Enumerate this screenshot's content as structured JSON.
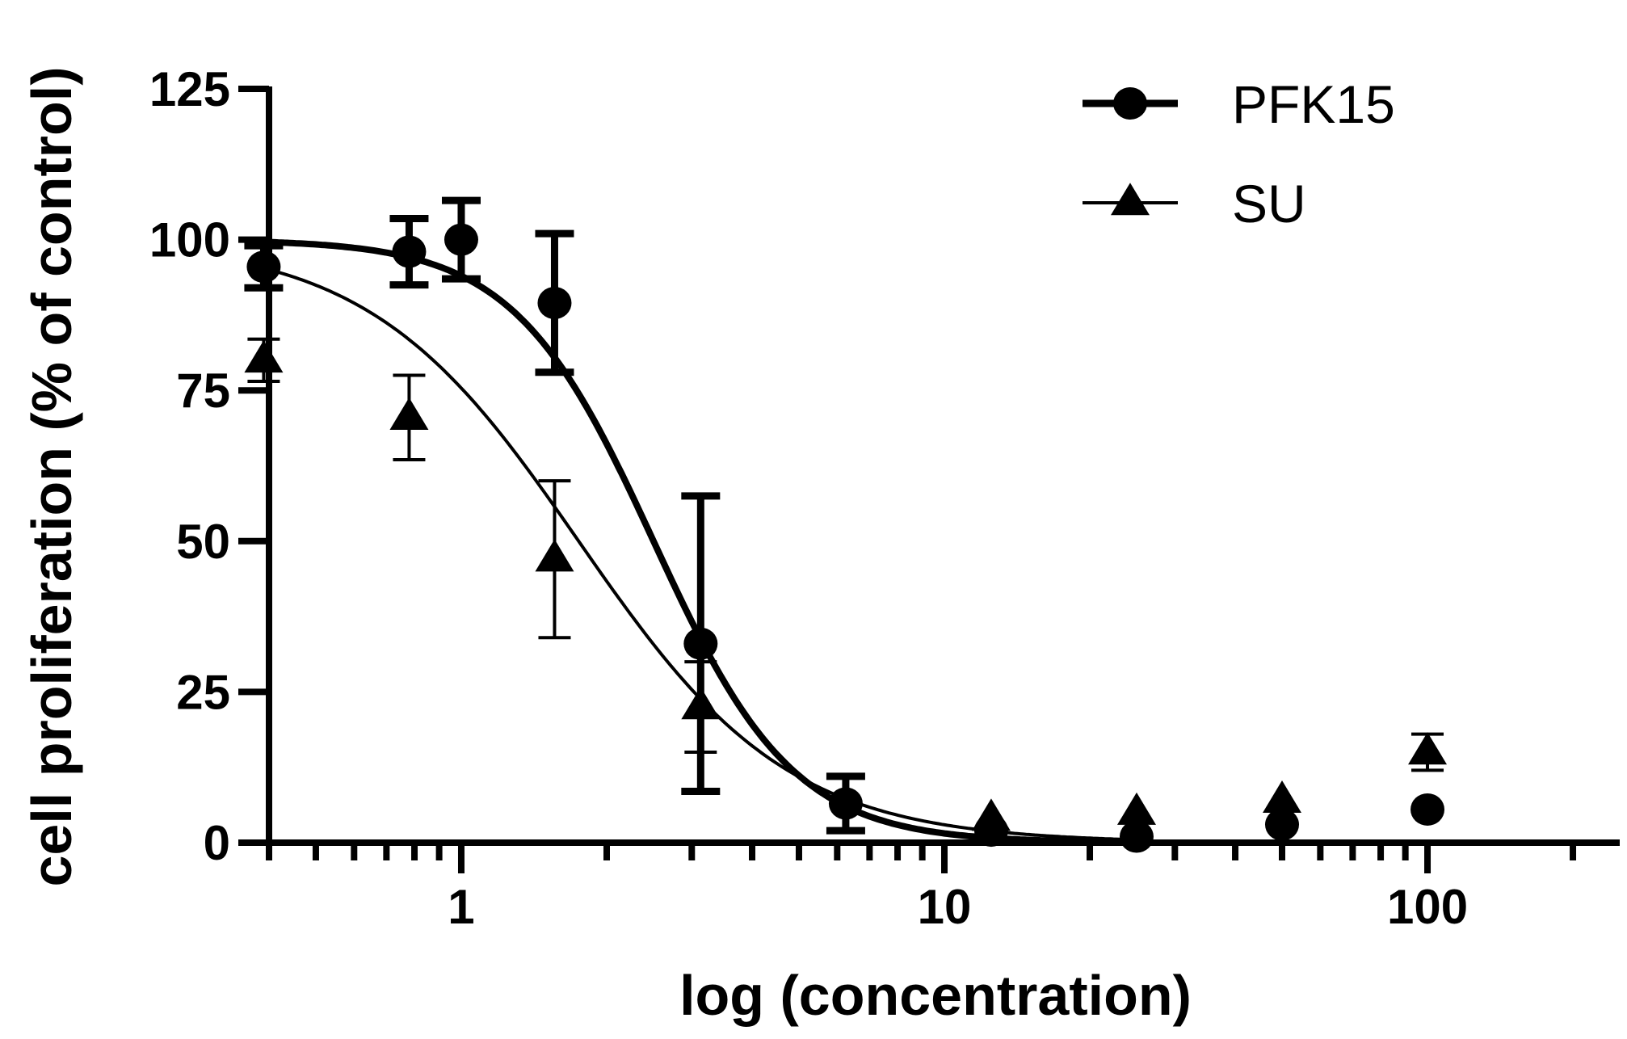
{
  "chart_data": {
    "type": "scatter",
    "title": "",
    "xlabel": "log (concentration)",
    "ylabel": "cell proliferation (% of control)",
    "x_scale": "log",
    "xlim": [
      0.4,
      250
    ],
    "ylim": [
      0,
      125
    ],
    "x_ticks": [
      1,
      10,
      100
    ],
    "x_tick_labels": [
      "1",
      "10",
      "100"
    ],
    "y_ticks": [
      0,
      25,
      50,
      75,
      100,
      125
    ],
    "y_tick_labels": [
      "0",
      "25",
      "50",
      "75",
      "100",
      "125"
    ],
    "grid": false,
    "legend_position": "top-right",
    "series": [
      {
        "name": "PFK15",
        "marker": "circle",
        "color": "#000000",
        "x": [
          0.39,
          0.78,
          1.0,
          1.56,
          3.13,
          6.25,
          12.5,
          25,
          50,
          100
        ],
        "y": [
          95.5,
          98,
          100,
          89.5,
          33,
          6.5,
          2,
          1,
          3,
          5.5
        ],
        "error": [
          3.5,
          5.5,
          6.5,
          11.5,
          24.5,
          4.5,
          null,
          null,
          null,
          null
        ],
        "fit": {
          "top": 100,
          "bottom": 0,
          "ec50": 2.5,
          "hill": 3.0
        }
      },
      {
        "name": "SU",
        "marker": "triangle",
        "color": "#000000",
        "x": [
          0.39,
          0.78,
          1.56,
          3.13,
          12.5,
          25,
          50,
          100
        ],
        "y": [
          80,
          70.5,
          47,
          22.5,
          4,
          5,
          7,
          15
        ],
        "error": [
          3.5,
          7,
          13,
          7.5,
          null,
          null,
          null,
          3
        ],
        "fit": {
          "top": 100,
          "bottom": 0,
          "ec50": 1.75,
          "hill": 2.0
        }
      }
    ]
  }
}
